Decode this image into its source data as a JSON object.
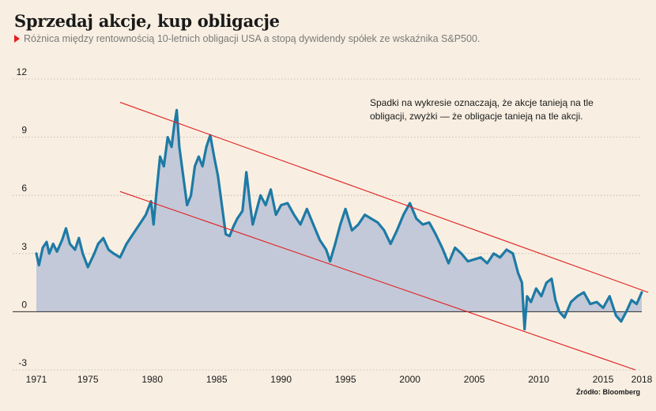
{
  "header": {
    "title": "Sprzedaj akcje, kup obligacje",
    "subtitle": "Różnica między rentownością 10-letnich obligacji USA a stopą dywidendy spółek ze wskaźnika S&P500."
  },
  "annotation": "Spadki na wykresie oznaczają, że akcje tanieją na tle obligacji, zwyżki — że obligacje tanieją na tle akcji.",
  "source": "Źródło: Bloomberg",
  "colors": {
    "background": "#f8efe2",
    "line": "#1e7aa5",
    "area": "#c3c9d8",
    "trend": "#e02020",
    "grid": "#b9b2a6",
    "zero": "#2a2a2a"
  },
  "chart_data": {
    "type": "area",
    "title": "Sprzedaj akcje, kup obligacje",
    "subtitle": "Różnica między rentownością 10-letnich obligacji USA a stopą dywidendy spółek ze wskaźnika S&P500.",
    "xlabel": "",
    "ylabel": "",
    "xlim": [
      1971,
      2018
    ],
    "ylim": [
      -3,
      12
    ],
    "grid": true,
    "y_ticks": [
      12,
      9,
      6,
      3,
      0,
      -3
    ],
    "y_tick_labels": [
      "12",
      "9",
      "6",
      "3",
      "0",
      "-3"
    ],
    "x_ticks": [
      1971,
      1975,
      1980,
      1985,
      1990,
      1995,
      2000,
      2005,
      2010,
      2015,
      2018
    ],
    "x_tick_labels": [
      "1971",
      "1975",
      "1980",
      "1985",
      "1990",
      "1995",
      "2000",
      "2005",
      "2010",
      "2015",
      "2018"
    ],
    "series": [
      {
        "x": [
          1971.0,
          1971.2,
          1971.5,
          1971.8,
          1972.0,
          1972.3,
          1972.6,
          1973.0,
          1973.3,
          1973.6,
          1974.0,
          1974.3,
          1974.6,
          1975.0,
          1975.5,
          1975.8,
          1976.2,
          1976.6,
          1977.0,
          1977.5,
          1978.0,
          1978.5,
          1979.0,
          1979.5,
          1979.9,
          1980.1,
          1980.3,
          1980.6,
          1980.9,
          1981.2,
          1981.5,
          1981.7,
          1981.9,
          1982.1,
          1982.4,
          1982.7,
          1983.0,
          1983.3,
          1983.6,
          1983.9,
          1984.2,
          1984.5,
          1984.8,
          1985.1,
          1985.4,
          1985.7,
          1986.0,
          1986.3,
          1986.6,
          1987.0,
          1987.3,
          1987.6,
          1987.8,
          1988.0,
          1988.4,
          1988.8,
          1989.2,
          1989.6,
          1990.0,
          1990.5,
          1991.0,
          1991.5,
          1992.0,
          1992.5,
          1993.0,
          1993.5,
          1993.8,
          1994.2,
          1994.6,
          1995.0,
          1995.5,
          1996.0,
          1996.5,
          1997.0,
          1997.5,
          1998.0,
          1998.5,
          1999.0,
          1999.5,
          2000.0,
          2000.5,
          2001.0,
          2001.5,
          2002.0,
          2002.5,
          2003.0,
          2003.5,
          2004.0,
          2004.5,
          2005.0,
          2005.5,
          2006.0,
          2006.5,
          2007.0,
          2007.5,
          2008.0,
          2008.4,
          2008.7,
          2008.9,
          2009.1,
          2009.4,
          2009.8,
          2010.2,
          2010.6,
          2011.0,
          2011.3,
          2011.6,
          2012.0,
          2012.5,
          2013.0,
          2013.5,
          2014.0,
          2014.5,
          2015.0,
          2015.5,
          2016.0,
          2016.4,
          2016.8,
          2017.2,
          2017.6,
          2018.0
        ],
        "values": [
          3.0,
          2.4,
          3.3,
          3.6,
          3.0,
          3.5,
          3.1,
          3.7,
          4.3,
          3.5,
          3.2,
          3.8,
          3.0,
          2.3,
          3.0,
          3.5,
          3.8,
          3.2,
          3.0,
          2.8,
          3.5,
          4.0,
          4.5,
          5.0,
          5.7,
          4.5,
          6.0,
          8.0,
          7.5,
          9.0,
          8.5,
          9.6,
          10.4,
          8.5,
          7.0,
          5.5,
          6.0,
          7.5,
          8.0,
          7.5,
          8.5,
          9.1,
          8.0,
          7.0,
          5.5,
          4.0,
          3.9,
          4.4,
          4.8,
          5.2,
          7.2,
          5.5,
          4.5,
          5.0,
          6.0,
          5.5,
          6.3,
          5.0,
          5.5,
          5.6,
          5.0,
          4.5,
          5.3,
          4.5,
          3.7,
          3.2,
          2.6,
          3.5,
          4.5,
          5.3,
          4.2,
          4.5,
          5.0,
          4.8,
          4.6,
          4.2,
          3.5,
          4.2,
          5.0,
          5.6,
          4.8,
          4.5,
          4.6,
          4.0,
          3.3,
          2.5,
          3.3,
          3.0,
          2.6,
          2.7,
          2.8,
          2.5,
          3.0,
          2.8,
          3.2,
          3.0,
          2.0,
          1.5,
          -0.9,
          0.8,
          0.5,
          1.2,
          0.8,
          1.5,
          1.7,
          0.6,
          0.0,
          -0.3,
          0.5,
          0.8,
          1.0,
          0.4,
          0.5,
          0.2,
          0.8,
          -0.2,
          -0.5,
          0.0,
          0.6,
          0.4,
          1.0
        ]
      }
    ],
    "trend_lines": [
      {
        "x": [
          1977.5,
          2018.5
        ],
        "y": [
          10.8,
          1.0
        ]
      },
      {
        "x": [
          1977.5,
          2017.5
        ],
        "y": [
          6.2,
          -3.0
        ]
      }
    ]
  }
}
